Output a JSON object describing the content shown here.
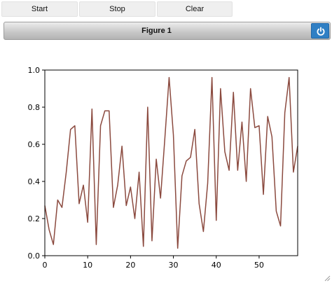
{
  "toolbar": {
    "start_label": "Start",
    "stop_label": "Stop",
    "clear_label": "Clear"
  },
  "figure": {
    "title": "Figure 1",
    "power_icon": "power-icon",
    "accent_color": "#2f7fc4"
  },
  "chart_data": {
    "type": "line",
    "title": "",
    "xlabel": "",
    "ylabel": "",
    "xlim": [
      0,
      59
    ],
    "ylim": [
      0.0,
      1.0
    ],
    "grid": false,
    "x_ticks": [
      "0",
      "10",
      "20",
      "30",
      "40",
      "50"
    ],
    "y_ticks": [
      "0.0",
      "0.2",
      "0.4",
      "0.6",
      "0.8",
      "1.0"
    ],
    "series": [
      {
        "color": "#8b4a3f",
        "x": [
          0,
          1,
          2,
          3,
          4,
          5,
          6,
          7,
          8,
          9,
          10,
          11,
          12,
          13,
          14,
          15,
          16,
          17,
          18,
          19,
          20,
          21,
          22,
          23,
          24,
          25,
          26,
          27,
          28,
          29,
          30,
          31,
          32,
          33,
          34,
          35,
          36,
          37,
          38,
          39,
          40,
          41,
          42,
          43,
          44,
          45,
          46,
          47,
          48,
          49,
          50,
          51,
          52,
          53,
          54,
          55,
          56,
          57,
          58,
          59
        ],
        "y": [
          0.27,
          0.14,
          0.06,
          0.3,
          0.26,
          0.45,
          0.68,
          0.7,
          0.28,
          0.38,
          0.18,
          0.79,
          0.06,
          0.7,
          0.78,
          0.78,
          0.26,
          0.38,
          0.59,
          0.27,
          0.37,
          0.2,
          0.45,
          0.05,
          0.8,
          0.08,
          0.52,
          0.31,
          0.63,
          0.96,
          0.65,
          0.04,
          0.43,
          0.51,
          0.53,
          0.68,
          0.28,
          0.13,
          0.39,
          0.96,
          0.19,
          0.9,
          0.56,
          0.46,
          0.88,
          0.46,
          0.72,
          0.4,
          0.9,
          0.69,
          0.7,
          0.33,
          0.75,
          0.64,
          0.24,
          0.16,
          0.77,
          0.96,
          0.45,
          0.59
        ]
      }
    ]
  }
}
